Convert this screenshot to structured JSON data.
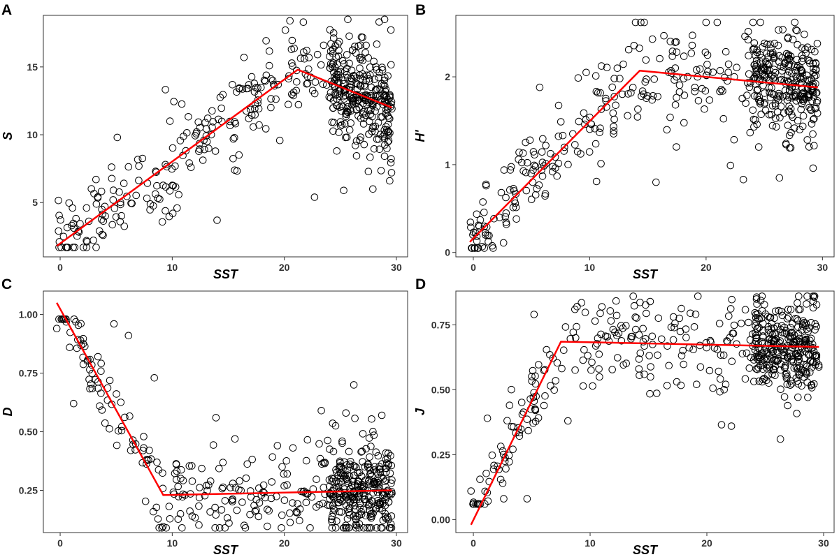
{
  "chart_data": [
    {
      "panel": "A",
      "type": "scatter",
      "xlabel": "SST",
      "ylabel": "S",
      "xlim": [
        -1.5,
        31
      ],
      "ylim": [
        1,
        18.8
      ],
      "xticks": [
        0,
        10,
        20,
        30
      ],
      "yticks": [
        5,
        10,
        15
      ],
      "xtick_labels": [
        "0",
        "10",
        "20",
        "30"
      ],
      "ytick_labels": [
        "5",
        "10",
        "15"
      ],
      "fit_line": {
        "x": [
          -0.3,
          21.2,
          29.6
        ],
        "y": [
          1.8,
          14.8,
          12.0
        ]
      },
      "point_model": {
        "seed": 11,
        "count": 520,
        "noise": 1.9,
        "xmin": -0.3,
        "xmax": 29.6,
        "ymin": 1.7,
        "ymax": 18.5
      },
      "points": [
        [
          0.3,
          2.5
        ],
        [
          1.1,
          4.6
        ],
        [
          3.2,
          6.7
        ],
        [
          5.1,
          9.8
        ],
        [
          9.8,
          11.0
        ],
        [
          14.0,
          3.7
        ],
        [
          16.4,
          15.7
        ],
        [
          20.5,
          18.4
        ],
        [
          22.7,
          5.4
        ],
        [
          25.3,
          5.9
        ],
        [
          27.9,
          6.0
        ],
        [
          29.4,
          6.6
        ],
        [
          21.7,
          18.3
        ],
        [
          24.4,
          17.5
        ]
      ]
    },
    {
      "panel": "B",
      "type": "scatter",
      "xlabel": "SST",
      "ylabel": "H'",
      "xlim": [
        -1.5,
        31
      ],
      "ylim": [
        -0.05,
        2.7
      ],
      "xticks": [
        0,
        10,
        20,
        30
      ],
      "yticks": [
        0,
        1,
        2
      ],
      "xtick_labels": [
        "0",
        "10",
        "20",
        "30"
      ],
      "ytick_labels": [
        "0",
        "1",
        "2"
      ],
      "fit_line": {
        "x": [
          -0.3,
          14.3,
          29.6
        ],
        "y": [
          0.12,
          2.07,
          1.88
        ]
      },
      "point_model": {
        "seed": 23,
        "count": 520,
        "noise": 0.3,
        "xmin": -0.3,
        "xmax": 29.6,
        "ymin": 0.05,
        "ymax": 2.62
      },
      "points": [
        [
          0.3,
          0.13
        ],
        [
          1.1,
          0.76
        ],
        [
          2.6,
          0.11
        ],
        [
          5.7,
          1.88
        ],
        [
          9.7,
          2.05
        ],
        [
          15.7,
          0.8
        ],
        [
          20.0,
          2.62
        ],
        [
          22.1,
          0.99
        ],
        [
          23.2,
          0.83
        ],
        [
          26.3,
          0.85
        ],
        [
          29.2,
          0.96
        ]
      ]
    },
    {
      "panel": "C",
      "type": "scatter",
      "xlabel": "SST",
      "ylabel": "D",
      "xlim": [
        -1.5,
        31
      ],
      "ylim": [
        0.07,
        1.1
      ],
      "xticks": [
        0,
        10,
        20,
        30
      ],
      "yticks": [
        0.25,
        0.5,
        0.75,
        1.0
      ],
      "xtick_labels": [
        "0",
        "10",
        "20",
        "30"
      ],
      "ytick_labels": [
        "0.25",
        "0.50",
        "0.75",
        "1.00"
      ],
      "fit_line": {
        "x": [
          -0.3,
          9.2,
          29.6
        ],
        "y": [
          1.05,
          0.23,
          0.25
        ]
      },
      "point_model": {
        "seed": 37,
        "count": 520,
        "noise": 0.1,
        "xmin": -0.3,
        "xmax": 29.6,
        "ymin": 0.09,
        "ymax": 0.98
      },
      "points": [
        [
          -0.3,
          0.94
        ],
        [
          1.2,
          0.62
        ],
        [
          4.8,
          0.96
        ],
        [
          6.1,
          0.91
        ],
        [
          8.4,
          0.73
        ],
        [
          13.9,
          0.56
        ],
        [
          26.2,
          0.7
        ],
        [
          25.5,
          0.58
        ],
        [
          28.7,
          0.57
        ],
        [
          23.3,
          0.59
        ]
      ]
    },
    {
      "panel": "D",
      "type": "scatter",
      "xlabel": "SST",
      "ylabel": "J",
      "xlim": [
        -1.5,
        30.9
      ],
      "ylim": [
        -0.05,
        0.88
      ],
      "xticks": [
        0,
        10,
        20,
        30
      ],
      "yticks": [
        0.0,
        0.25,
        0.5,
        0.75
      ],
      "xtick_labels": [
        "0",
        "10",
        "20",
        "30"
      ],
      "ytick_labels": [
        "0.00",
        "0.25",
        "0.50",
        "0.75"
      ],
      "fit_line": {
        "x": [
          -0.2,
          7.5,
          29.6
        ],
        "y": [
          -0.02,
          0.685,
          0.665
        ]
      },
      "point_model": {
        "seed": 53,
        "count": 520,
        "noise": 0.09,
        "xmin": -0.3,
        "xmax": 29.6,
        "ymin": 0.06,
        "ymax": 0.86
      },
      "points": [
        [
          -0.2,
          0.11
        ],
        [
          1.2,
          0.39
        ],
        [
          2.6,
          0.08
        ],
        [
          4.6,
          0.08
        ],
        [
          3.1,
          0.44
        ],
        [
          5.2,
          0.79
        ],
        [
          8.1,
          0.38
        ],
        [
          26.3,
          0.31
        ],
        [
          22.1,
          0.36
        ],
        [
          29.1,
          0.86
        ]
      ]
    }
  ]
}
